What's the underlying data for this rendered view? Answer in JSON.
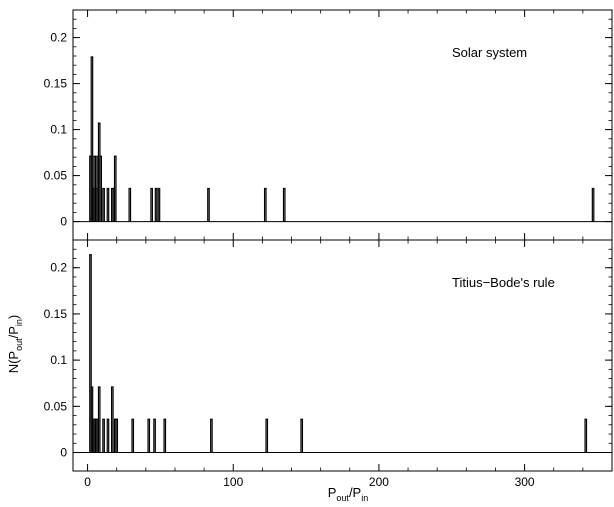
{
  "chart_data": [
    {
      "type": "histogram-step",
      "panel_label": "Solar system",
      "xlim": [
        -10,
        360
      ],
      "ylim": [
        -0.02,
        0.23
      ],
      "yticks": [
        0,
        0.05,
        0.1,
        0.15,
        0.2
      ],
      "ytick_labels": [
        "0",
        "0.05",
        "0.1",
        "0.15",
        "0.2"
      ],
      "bin_width": 1,
      "bins": [
        {
          "x": 2,
          "y": 0.071
        },
        {
          "x": 3,
          "y": 0.179
        },
        {
          "x": 4,
          "y": 0.036
        },
        {
          "x": 5,
          "y": 0.071
        },
        {
          "x": 6,
          "y": 0.036
        },
        {
          "x": 7,
          "y": 0.071
        },
        {
          "x": 8,
          "y": 0.107
        },
        {
          "x": 9,
          "y": 0.071
        },
        {
          "x": 11,
          "y": 0.036
        },
        {
          "x": 14,
          "y": 0.036
        },
        {
          "x": 17,
          "y": 0.036
        },
        {
          "x": 18,
          "y": 0.036
        },
        {
          "x": 19,
          "y": 0.071
        },
        {
          "x": 29,
          "y": 0.036
        },
        {
          "x": 44,
          "y": 0.036
        },
        {
          "x": 47,
          "y": 0.036
        },
        {
          "x": 49,
          "y": 0.036
        },
        {
          "x": 83,
          "y": 0.036
        },
        {
          "x": 122,
          "y": 0.036
        },
        {
          "x": 135,
          "y": 0.036
        },
        {
          "x": 347,
          "y": 0.036
        }
      ]
    },
    {
      "type": "histogram-step",
      "panel_label": "Titius−Bode's rule",
      "xlim": [
        -10,
        360
      ],
      "ylim": [
        -0.02,
        0.23
      ],
      "yticks": [
        0,
        0.05,
        0.1,
        0.15,
        0.2
      ],
      "ytick_labels": [
        "0",
        "0.05",
        "0.1",
        "0.15",
        "0.2"
      ],
      "bin_width": 1,
      "bins": [
        {
          "x": 2,
          "y": 0.214
        },
        {
          "x": 3,
          "y": 0.071
        },
        {
          "x": 4,
          "y": 0.036
        },
        {
          "x": 5,
          "y": 0.036
        },
        {
          "x": 6,
          "y": 0.036
        },
        {
          "x": 7,
          "y": 0.036
        },
        {
          "x": 8,
          "y": 0.071
        },
        {
          "x": 11,
          "y": 0.036
        },
        {
          "x": 14,
          "y": 0.036
        },
        {
          "x": 17,
          "y": 0.071
        },
        {
          "x": 19,
          "y": 0.036
        },
        {
          "x": 20,
          "y": 0.036
        },
        {
          "x": 31,
          "y": 0.036
        },
        {
          "x": 42,
          "y": 0.036
        },
        {
          "x": 46,
          "y": 0.036
        },
        {
          "x": 53,
          "y": 0.036
        },
        {
          "x": 85,
          "y": 0.036
        },
        {
          "x": 123,
          "y": 0.036
        },
        {
          "x": 147,
          "y": 0.036
        },
        {
          "x": 342,
          "y": 0.036
        }
      ]
    }
  ],
  "axes": {
    "xticks": [
      0,
      100,
      200,
      300
    ],
    "xtick_labels": [
      "0",
      "100",
      "200",
      "300"
    ],
    "xlabel_main": "P",
    "xlabel_sub_num": "out",
    "xlabel_sep": "/P",
    "xlabel_sub_den": "in",
    "ylabel_prefix": "N(P",
    "ylabel_sub_num": "out",
    "ylabel_sep": "/P",
    "ylabel_sub_den": "in",
    "ylabel_suffix": ")"
  }
}
